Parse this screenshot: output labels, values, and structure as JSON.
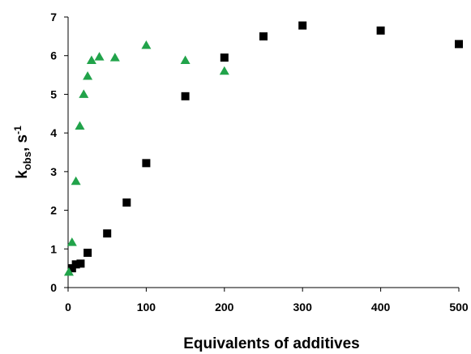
{
  "chart_data": {
    "type": "scatter",
    "title": "",
    "xlabel": "Equivalents of additives",
    "ylabel": {
      "base": "k",
      "subscript": "obs",
      "mid": ", s",
      "superscript": "-1"
    },
    "xlim": [
      0,
      500
    ],
    "ylim": [
      0,
      7
    ],
    "xticks": [
      0,
      100,
      200,
      300,
      400,
      500
    ],
    "yticks": [
      0,
      1,
      2,
      3,
      4,
      5,
      6,
      7
    ],
    "grid": false,
    "legend": "none",
    "series": [
      {
        "marker": "square",
        "color": "#000000",
        "x": [
          5,
          10,
          16,
          25,
          50,
          75,
          100,
          150,
          200,
          250,
          300,
          400,
          500
        ],
        "y": [
          0.5,
          0.6,
          0.62,
          0.9,
          1.4,
          2.2,
          3.22,
          4.95,
          5.95,
          6.5,
          6.78,
          6.65,
          6.3
        ]
      },
      {
        "marker": "triangle",
        "color": "#21a34a",
        "x": [
          1,
          5,
          10,
          15,
          20,
          25,
          30,
          40,
          60,
          100,
          150,
          200
        ],
        "y": [
          0.4,
          1.17,
          2.75,
          4.18,
          5.0,
          5.47,
          5.88,
          5.97,
          5.95,
          6.27,
          5.88,
          5.6
        ]
      }
    ]
  }
}
